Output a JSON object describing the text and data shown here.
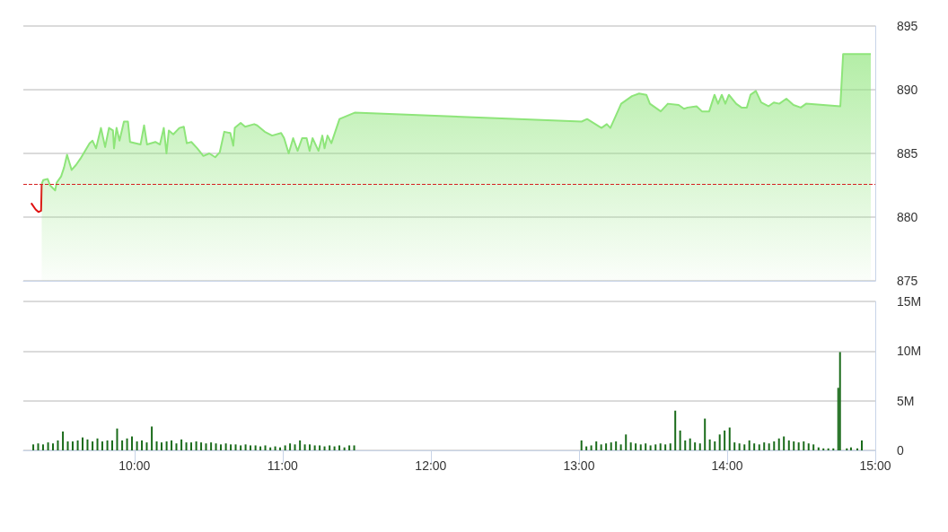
{
  "chart_data": [
    {
      "type": "area",
      "xlim": [
        9.25,
        15
      ],
      "ylim": [
        875,
        895
      ],
      "yticks": [
        875,
        880,
        885,
        890,
        895
      ],
      "grid": "y",
      "marker": "none",
      "tick_labels": "y",
      "ref_lines": [
        {
          "axis": "y",
          "value": 882.6,
          "color": "#d62020",
          "line_style": "dashed"
        }
      ],
      "series": [
        {
          "type": "line",
          "color": "#e01010",
          "x": [
            9.303,
            9.333,
            9.352,
            9.37,
            9.374
          ],
          "values": [
            881.1,
            880.6,
            880.4,
            880.5,
            882.6
          ]
        },
        {
          "color": "#8ee57a",
          "x": [
            9.374,
            9.384,
            9.414,
            9.43,
            9.465,
            9.475,
            9.505,
            9.525,
            9.545,
            9.576,
            9.606,
            9.636,
            9.697,
            9.717,
            9.741,
            9.774,
            9.802,
            9.828,
            9.855,
            9.862,
            9.879,
            9.899,
            9.929,
            9.956,
            9.97,
            10.041,
            10.065,
            10.085,
            10.141,
            10.172,
            10.198,
            10.216,
            10.232,
            10.262,
            10.303,
            10.333,
            10.353,
            10.384,
            10.424,
            10.465,
            10.505,
            10.545,
            10.576,
            10.606,
            10.647,
            10.667,
            10.677,
            10.717,
            10.747,
            10.808,
            10.828,
            10.879,
            10.929,
            10.99,
            11.01,
            11.041,
            11.071,
            11.101,
            11.132,
            11.162,
            11.182,
            11.202,
            11.242,
            11.268,
            11.283,
            11.303,
            11.329,
            11.384,
            11.486,
            13.018,
            13.055,
            13.152,
            13.188,
            13.212,
            13.285,
            13.358,
            13.406,
            13.455,
            13.479,
            13.552,
            13.6,
            13.673,
            13.709,
            13.733,
            13.794,
            13.83,
            13.879,
            13.915,
            13.939,
            13.964,
            13.988,
            14.012,
            14.061,
            14.097,
            14.133,
            14.158,
            14.194,
            14.23,
            14.279,
            14.315,
            14.352,
            14.4,
            14.448,
            14.497,
            14.533,
            14.764,
            14.783,
            14.97
          ],
          "values": [
            882.6,
            882.9,
            883,
            882.5,
            882.1,
            882.7,
            883.2,
            883.9,
            884.9,
            883.7,
            884.1,
            884.6,
            885.8,
            886,
            885.4,
            887,
            885.5,
            887,
            886.8,
            885.4,
            887,
            886,
            887.5,
            887.5,
            885.9,
            885.7,
            887.2,
            885.7,
            885.9,
            885.7,
            887,
            885,
            886.8,
            886.5,
            887,
            887.1,
            885.8,
            885.9,
            885.4,
            884.8,
            885,
            884.7,
            885.1,
            886.7,
            886.6,
            885.6,
            887,
            887.4,
            887.1,
            887.3,
            887.2,
            886.7,
            886.4,
            886.6,
            886.2,
            885,
            886.2,
            885.2,
            886.2,
            886.2,
            885.2,
            886.2,
            885.2,
            886.4,
            885.4,
            886.4,
            885.8,
            887.7,
            888.2,
            887.5,
            887.7,
            887,
            887.3,
            887,
            888.9,
            889.5,
            889.7,
            889.6,
            888.9,
            888.3,
            888.9,
            888.8,
            888.5,
            888.6,
            888.7,
            888.3,
            888.3,
            889.6,
            888.9,
            889.6,
            888.9,
            889.6,
            888.9,
            888.6,
            888.6,
            889.6,
            889.9,
            889,
            888.7,
            889,
            888.9,
            889.3,
            888.8,
            888.6,
            888.9,
            888.7,
            892.8,
            892.8
          ]
        }
      ]
    },
    {
      "type": "bar",
      "color": "#1a6b1a",
      "xlim": [
        9.25,
        15
      ],
      "xticks": [
        {
          "value": 10,
          "label": "10:00"
        },
        {
          "value": 11,
          "label": "11:00"
        },
        {
          "value": 12,
          "label": "12:00"
        },
        {
          "value": 13,
          "label": "13:00"
        },
        {
          "value": 14,
          "label": "14:00"
        },
        {
          "value": 15,
          "label": "15:00"
        }
      ],
      "ylim": [
        0,
        15000000
      ],
      "yticks": [
        0,
        {
          "value": 5000000,
          "label": "5M"
        },
        {
          "value": 10000000,
          "label": "10M"
        },
        {
          "value": 15000000,
          "label": "15M"
        }
      ],
      "grid": "y",
      "x": [
        9.317,
        9.35,
        9.383,
        9.417,
        9.45,
        9.483,
        9.517,
        9.55,
        9.583,
        9.617,
        9.65,
        9.683,
        9.717,
        9.75,
        9.783,
        9.817,
        9.85,
        9.883,
        9.917,
        9.95,
        9.983,
        10.017,
        10.05,
        10.083,
        10.117,
        10.15,
        10.183,
        10.217,
        10.25,
        10.283,
        10.317,
        10.35,
        10.383,
        10.417,
        10.45,
        10.483,
        10.517,
        10.55,
        10.583,
        10.617,
        10.65,
        10.683,
        10.717,
        10.75,
        10.783,
        10.817,
        10.85,
        10.883,
        10.917,
        10.95,
        10.983,
        11.017,
        11.05,
        11.083,
        11.117,
        11.15,
        11.183,
        11.217,
        11.25,
        11.283,
        11.317,
        11.35,
        11.383,
        11.417,
        11.45,
        11.483,
        13.017,
        13.05,
        13.083,
        13.117,
        13.15,
        13.183,
        13.217,
        13.25,
        13.283,
        13.317,
        13.35,
        13.383,
        13.417,
        13.45,
        13.483,
        13.517,
        13.55,
        13.583,
        13.617,
        13.65,
        13.683,
        13.717,
        13.75,
        13.783,
        13.817,
        13.85,
        13.883,
        13.917,
        13.95,
        13.983,
        14.017,
        14.05,
        14.083,
        14.117,
        14.15,
        14.183,
        14.217,
        14.25,
        14.283,
        14.317,
        14.35,
        14.383,
        14.417,
        14.45,
        14.483,
        14.517,
        14.55,
        14.583,
        14.617,
        14.65,
        14.683,
        14.717,
        14.75,
        14.762,
        14.808,
        14.836,
        14.879,
        14.909
      ],
      "values": [
        600000,
        700000,
        600000,
        800000,
        700000,
        1000000,
        1900000,
        900000,
        900000,
        1000000,
        1300000,
        1100000,
        900000,
        1200000,
        900000,
        1000000,
        1000000,
        2200000,
        1000000,
        1200000,
        1400000,
        900000,
        1000000,
        800000,
        2400000,
        900000,
        800000,
        900000,
        1000000,
        700000,
        1100000,
        800000,
        800000,
        900000,
        800000,
        700000,
        800000,
        700000,
        600000,
        700000,
        600000,
        600000,
        500000,
        600000,
        500000,
        500000,
        400000,
        500000,
        300000,
        400000,
        300000,
        500000,
        700000,
        600000,
        1000000,
        600000,
        600000,
        500000,
        500000,
        400000,
        500000,
        400000,
        500000,
        300000,
        500000,
        500000,
        1000000,
        400000,
        500000,
        900000,
        600000,
        700000,
        800000,
        900000,
        600000,
        1600000,
        800000,
        700000,
        600000,
        700000,
        500000,
        600000,
        700000,
        600000,
        700000,
        4000000,
        2000000,
        1000000,
        1200000,
        800000,
        700000,
        3200000,
        1100000,
        900000,
        1600000,
        2000000,
        2300000,
        800000,
        700000,
        600000,
        1000000,
        700000,
        600000,
        800000,
        700000,
        900000,
        1200000,
        1400000,
        1000000,
        900000,
        800000,
        900000,
        700000,
        600000,
        300000,
        200000,
        200000,
        200000,
        6300000,
        9900000,
        200000,
        300000,
        200000,
        1000000
      ]
    }
  ]
}
